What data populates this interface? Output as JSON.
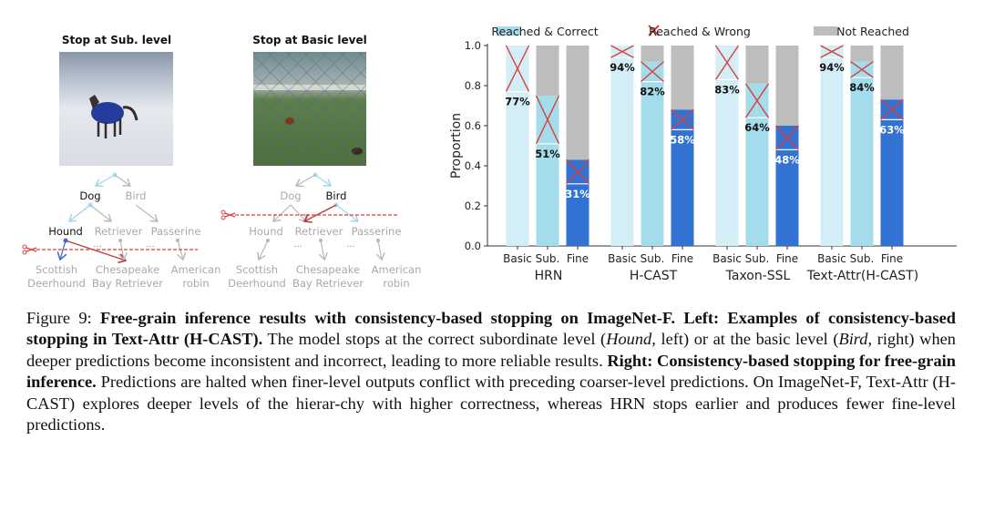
{
  "left_panel": {
    "examples": [
      {
        "title": "Stop at Sub. level"
      },
      {
        "title": "Stop at Basic level"
      }
    ],
    "tree_labels": {
      "level1": [
        "Dog",
        "Bird"
      ],
      "level2": [
        "Hound",
        "Retriever",
        "Passerine"
      ],
      "level3": [
        [
          "Scottish",
          "Deerhound"
        ],
        [
          "Chesapeake",
          "Bay Retriever"
        ],
        [
          "American",
          "robin"
        ]
      ],
      "ellipsis": "..."
    }
  },
  "chart_data": {
    "type": "bar",
    "stacked": true,
    "ylabel": "Proportion",
    "ylim": [
      0,
      1.0
    ],
    "yticks": [
      "0.0",
      "0.2",
      "0.4",
      "0.6",
      "0.8",
      "1.0"
    ],
    "levels": [
      "Basic",
      "Sub.",
      "Fine"
    ],
    "legend": [
      "Reached & Correct",
      "Reached & Wrong",
      "Not Reached"
    ],
    "legend_placement": "top",
    "colors": {
      "basic": "#d3eef7",
      "sub": "#a4dcec",
      "fine": "#3272d3",
      "wrong": "#d9403a",
      "not_reached": "#bdbdbd"
    },
    "groups": [
      {
        "name": "HRN",
        "correct": [
          0.77,
          0.51,
          0.31
        ],
        "reached": [
          1.0,
          0.75,
          0.43
        ],
        "labels": [
          "77%",
          "51%",
          "31%"
        ]
      },
      {
        "name": "H-CAST",
        "correct": [
          0.94,
          0.82,
          0.58
        ],
        "reached": [
          1.0,
          0.92,
          0.68
        ],
        "labels": [
          "94%",
          "82%",
          "58%"
        ]
      },
      {
        "name": "Taxon-SSL",
        "correct": [
          0.83,
          0.64,
          0.48
        ],
        "reached": [
          1.0,
          0.81,
          0.6
        ],
        "labels": [
          "83%",
          "64%",
          "48%"
        ]
      },
      {
        "name": "Text-Attr(H-CAST)",
        "correct": [
          0.94,
          0.84,
          0.63
        ],
        "reached": [
          1.0,
          0.92,
          0.73
        ],
        "labels": [
          "94%",
          "84%",
          "63%"
        ]
      }
    ]
  },
  "caption": {
    "label": "Figure 9:",
    "bold1": "Free-grain inference results with consistency-based stopping on ImageNet-F. Left: Examples of consistency-based stopping in Text-Attr (H-CAST).",
    "t1": " The model stops at the correct subordinate level (",
    "i1": "Hound",
    "t2": ", left) or at the basic level (",
    "i2": "Bird",
    "t3": ", right) when deeper predictions become inconsistent and incorrect, leading to more reliable results. ",
    "bold2": "Right: Consistency-based stopping for free-grain inference.",
    "t4": " Predictions are halted when finer-level outputs conflict with preceding coarser-level predictions. On ImageNet-F, Text-Attr (H-CAST) explores deeper levels of the hierar-chy with higher correctness, whereas HRN stops earlier and produces fewer fine-level predictions."
  }
}
